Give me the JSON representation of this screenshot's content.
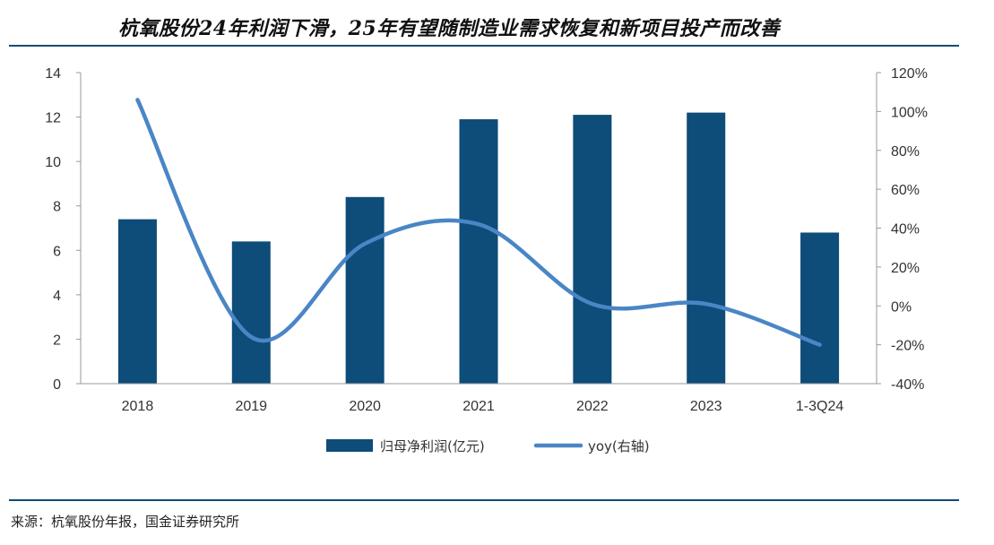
{
  "header": {
    "title": "杭氧股份24年利润下滑，25年有望随制造业需求恢复和新项目投产而改善"
  },
  "footer": {
    "source": "来源：杭氧股份年报，国金证券研究所"
  },
  "chart_data": {
    "type": "bar",
    "categories": [
      "2018",
      "2019",
      "2020",
      "2021",
      "2022",
      "2023",
      "1-3Q24"
    ],
    "series": [
      {
        "name": "归母净利润(亿元)",
        "type": "bar",
        "axis": "left",
        "color": "#0e4c79",
        "values": [
          7.4,
          6.4,
          8.4,
          11.9,
          12.1,
          12.2,
          6.8
        ]
      },
      {
        "name": "yoy(右轴)",
        "type": "line",
        "axis": "right",
        "color": "#4a86c5",
        "values": [
          1.06,
          -0.16,
          0.32,
          0.42,
          0.01,
          0.01,
          -0.2
        ]
      }
    ],
    "left_axis": {
      "ylim": [
        0,
        14
      ],
      "ticks": [
        "0",
        "2",
        "4",
        "6",
        "8",
        "10",
        "12",
        "14"
      ]
    },
    "right_axis": {
      "ylim": [
        -0.4,
        1.2
      ],
      "ticks": [
        "-40%",
        "-20%",
        "0%",
        "20%",
        "40%",
        "60%",
        "80%",
        "100%",
        "120%"
      ]
    },
    "grid": false,
    "legend_position": "bottom"
  }
}
